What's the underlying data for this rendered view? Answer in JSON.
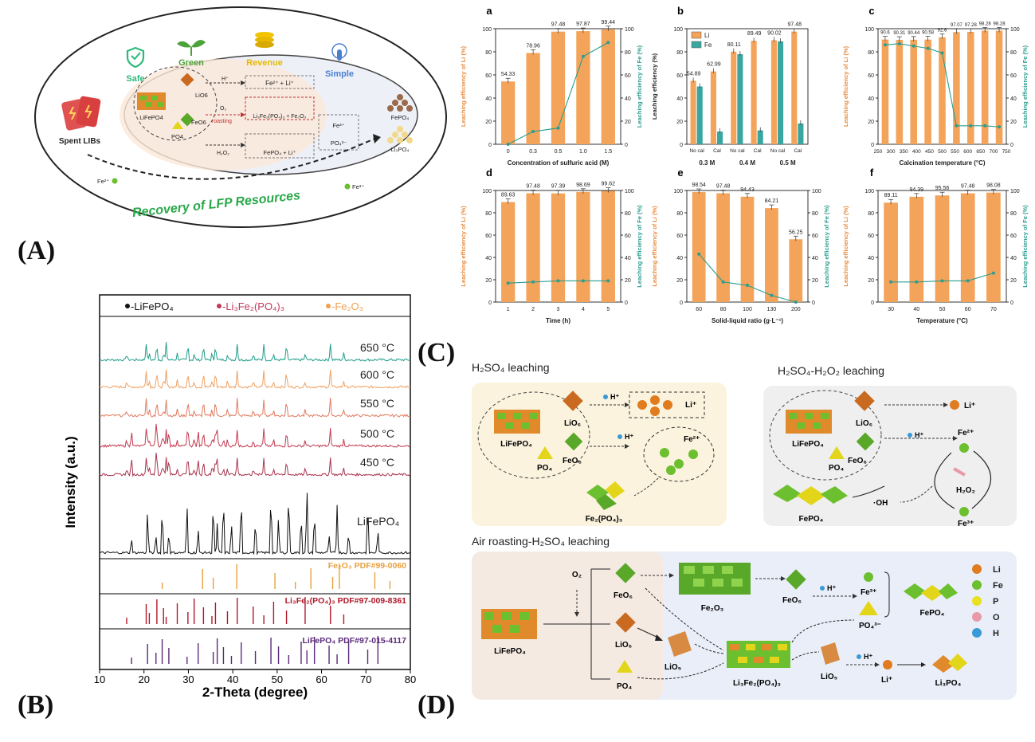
{
  "panel_labels": {
    "A": "(A)",
    "B": "(B)",
    "C": "(C)",
    "D": "(D)"
  },
  "panel_a": {
    "benefits": [
      {
        "label": "Safe",
        "icon": "shield-icon",
        "color": "#2db97a"
      },
      {
        "label": "Green",
        "icon": "sprout-icon",
        "color": "#4aa338"
      },
      {
        "label": "Revenue",
        "icon": "coins-icon",
        "color": "#e6b800"
      },
      {
        "label": "Simple",
        "icon": "touch-icon",
        "color": "#4a7fd0"
      }
    ],
    "spent_label": "Spent LIBs",
    "inner": {
      "lifepo4": "LiFePO4",
      "lio6": "LiO6",
      "feo6": "FeO6",
      "po4": "PO4",
      "hplus": "H⁺",
      "o2": "O₂",
      "roasting": "roasting",
      "h2o2": "H₂O₂",
      "fe2_li": "Fe²⁺ + Li⁺",
      "roast_products": "Li₃Fe₂(PO₄)₃ + Fe₂O₃",
      "h2o2_products": "FePO₄ + Li⁺",
      "fe3": "Fe³⁺",
      "po43": "PO₄³⁻"
    },
    "products": [
      "FePO₄",
      "Li₃PO₄"
    ],
    "fe2_ion": "Fe²⁺",
    "fe3_ion": "Fe³⁺",
    "banner": "Recovery of LFP Resources"
  },
  "chart_data": [
    {
      "type": "bar",
      "id": "a",
      "panel_letter": "a",
      "categories": [
        "0",
        "0.3",
        "0.5",
        "1.0",
        "1.5"
      ],
      "series": [
        {
          "name": "Li",
          "axis": "left",
          "values": [
            54.33,
            78.96,
            97.48,
            97.87,
            99.44
          ],
          "color": "#f4a35a"
        },
        {
          "axis": "right",
          "type": "line",
          "values": [
            0,
            11,
            14,
            76,
            88
          ],
          "color": "#2a9d8f"
        }
      ],
      "xlabel": "Concentration of sulfuric acid (M)",
      "ylabel": "Leaching efficiency of Li (%)",
      "y2label": "Leaching efficiency of Fe (%)",
      "ylim": [
        0,
        100
      ]
    },
    {
      "type": "bar",
      "id": "b",
      "panel_letter": "b",
      "categories": [
        "No cal",
        "Cal",
        "No cal",
        "Cal",
        "No cal",
        "Cal"
      ],
      "groups": [
        "0.3 M",
        "0.4 M",
        "0.5 M"
      ],
      "series": [
        {
          "name": "Li",
          "values": [
            54.89,
            62.99,
            80.11,
            89.49,
            90.02,
            97.48
          ],
          "color": "#f4a35a"
        },
        {
          "name": "Fe",
          "values": [
            50,
            11,
            78,
            12,
            89,
            18
          ],
          "color": "#3aa6a0"
        }
      ],
      "ylabel": "Leaching efficiency (%)",
      "ylim": [
        0,
        100
      ],
      "legend": "top-left"
    },
    {
      "type": "bar",
      "id": "c",
      "panel_letter": "c",
      "categories": [
        "300",
        "350",
        "400",
        "450",
        "500",
        "550",
        "600",
        "650",
        "700"
      ],
      "series": [
        {
          "name": "Li",
          "axis": "left",
          "values": [
            90.6,
            90.31,
            90.44,
            90.58,
            92.6,
            97.07,
            97.28,
            98.28,
            98.28
          ],
          "color": "#f4a35a"
        },
        {
          "axis": "right",
          "type": "line",
          "values": [
            86,
            87,
            85,
            83,
            79,
            16,
            16,
            16,
            15
          ],
          "color": "#2a9d8f"
        }
      ],
      "xticks": [
        "250",
        "300",
        "350",
        "400",
        "450",
        "500",
        "550",
        "600",
        "650",
        "700",
        "750"
      ],
      "xlabel": "Calcination temperature (°C)",
      "ylabel": "Leaching efficiency of Li (%)",
      "y2label": "Leaching efficiency of Fe (%)",
      "ylim": [
        0,
        100
      ]
    },
    {
      "type": "bar",
      "id": "d",
      "panel_letter": "d",
      "categories": [
        "1",
        "2",
        "3",
        "4",
        "5"
      ],
      "series": [
        {
          "name": "Li",
          "axis": "left",
          "values": [
            89.63,
            97.48,
            97.39,
            98.69,
            99.62
          ],
          "color": "#f4a35a"
        },
        {
          "axis": "right",
          "type": "line",
          "values": [
            17,
            18,
            19,
            19,
            19
          ],
          "color": "#2a9d8f"
        }
      ],
      "xlabel": "Time (h)",
      "ylabel": "Leaching efficiency of Li (%)",
      "y2label": "Leaching efficiency of Fe (%)",
      "ylim": [
        0,
        100
      ]
    },
    {
      "type": "bar",
      "id": "e",
      "panel_letter": "e",
      "categories": [
        "60",
        "80",
        "100",
        "130",
        "200"
      ],
      "series": [
        {
          "name": "Li",
          "axis": "left",
          "values": [
            98.54,
            97.48,
            94.43,
            84.21,
            56.25
          ],
          "color": "#f4a35a"
        },
        {
          "axis": "right",
          "type": "line",
          "values": [
            43,
            18,
            15,
            6,
            0
          ],
          "color": "#2a9d8f"
        }
      ],
      "xlabel": "Solid-liquid ratio (g·L⁻¹)",
      "ylabel": "Leaching efficiency of Li (%)",
      "y2label": "Leaching efficiency of Fe (%)",
      "ylim": [
        0,
        100
      ]
    },
    {
      "type": "bar",
      "id": "f",
      "panel_letter": "f",
      "categories": [
        "30",
        "40",
        "50",
        "60",
        "70"
      ],
      "series": [
        {
          "name": "Li",
          "axis": "left",
          "values": [
            89.11,
            94.39,
            95.56,
            97.48,
            98.08
          ],
          "color": "#f4a35a"
        },
        {
          "axis": "right",
          "type": "line",
          "values": [
            18,
            18,
            19,
            19,
            26
          ],
          "color": "#2a9d8f"
        }
      ],
      "xlabel": "Temperature (°C)",
      "ylabel": "Leaching efficiency of Li (%)",
      "y2label": "Leaching efficiency of Fe (%)",
      "ylim": [
        0,
        100
      ]
    },
    {
      "type": "line",
      "id": "xrd",
      "xlabel": "2-Theta (degree)",
      "ylabel": "Intensity (a.u.)",
      "xlim": [
        10,
        80
      ],
      "xticks": [
        "10",
        "20",
        "30",
        "40",
        "50",
        "60",
        "70",
        "80"
      ],
      "legend": [
        {
          "label": "-LiFePO₄",
          "color": "#111111"
        },
        {
          "label": "-Li₃Fe₂(PO₄)₃",
          "color": "#c0395a"
        },
        {
          "label": "-Fe₂O₃",
          "color": "#f0a050"
        }
      ],
      "patterns": [
        {
          "label": "650 °C",
          "color": "#1f9c8a"
        },
        {
          "label": "600 °C",
          "color": "#f0a060"
        },
        {
          "label": "550 °C",
          "color": "#e07a5f"
        },
        {
          "label": "500 °C",
          "color": "#c2384e"
        },
        {
          "label": "450 °C",
          "color": "#a8324e"
        },
        {
          "label": "LiFePO₄",
          "color": "#111111"
        }
      ],
      "references": [
        {
          "label": "Fe₂O₃ PDF#99-0060",
          "color": "#e8a040",
          "peaks": [
            24.1,
            33.2,
            35.6,
            40.9,
            49.5,
            54.1,
            57.6,
            62.5,
            64.0,
            72.0,
            75.4
          ]
        },
        {
          "label": "Li₃Fe₂(PO₄)₃ PDF#97-009-8361",
          "color": "#b0182a",
          "peaks": [
            16.1,
            20.5,
            21.2,
            22.9,
            24.4,
            25.0,
            27.5,
            29.9,
            31.3,
            33.4,
            35.3,
            36.1,
            38.8,
            41.0,
            44.6,
            47.0,
            49.2,
            52.1,
            56.3,
            62.0,
            65.0
          ]
        },
        {
          "label": "LiFePO₄ PDF#97-015-4117",
          "color": "#5a2a7a",
          "peaks": [
            17.2,
            20.8,
            22.7,
            24.1,
            25.6,
            29.7,
            32.2,
            35.6,
            36.5,
            37.9,
            39.7,
            41.9,
            45.1,
            48.6,
            50.3,
            52.6,
            55.4,
            56.7,
            58.4,
            61.7,
            63.5,
            66.1,
            70.4,
            72.7
          ]
        }
      ]
    }
  ],
  "panel_c": {
    "h2so4_title": "H₂SO₄ leaching",
    "h2o2_title": "H₂SO₄-H₂O₂ leaching",
    "lifepo4": "LiFePO₄",
    "lio6": "LiO₆",
    "feo6": "FeO₆",
    "po4": "PO₄",
    "hplus": "H⁺",
    "li": "Li⁺",
    "fe2": "Fe²⁺",
    "fe3": "Fe³⁺",
    "fe2po43": "Fe₂(PO₄)₃",
    "h2o2": "H₂O₂",
    "oh": "·OH",
    "fepo4": "FePO₄"
  },
  "panel_d": {
    "title": "Air roasting-H₂SO₄ leaching",
    "o2": "O₂",
    "lifepo4": "LiFePO₄",
    "feo6": "FeO₆",
    "lio6": "LiO₆",
    "po4": "PO₄",
    "fe2o3": "Fe₂O₃",
    "lio5": "LiO₅",
    "li3fe2": "Li₃Fe₂(PO₄)₃",
    "hplus": "H⁺",
    "fe3": "Fe³⁺",
    "po43": "PO₄³⁻",
    "fepo4": "FePO₄",
    "li": "Li⁺",
    "li3po4": "Li₃PO₄",
    "legend": [
      {
        "label": "Li",
        "color": "#e07b1f"
      },
      {
        "label": "Fe",
        "color": "#6cbf2e"
      },
      {
        "label": "P",
        "color": "#e8e020"
      },
      {
        "label": "O",
        "color": "#e89aa8"
      },
      {
        "label": "H",
        "color": "#3a9ad8"
      }
    ]
  }
}
